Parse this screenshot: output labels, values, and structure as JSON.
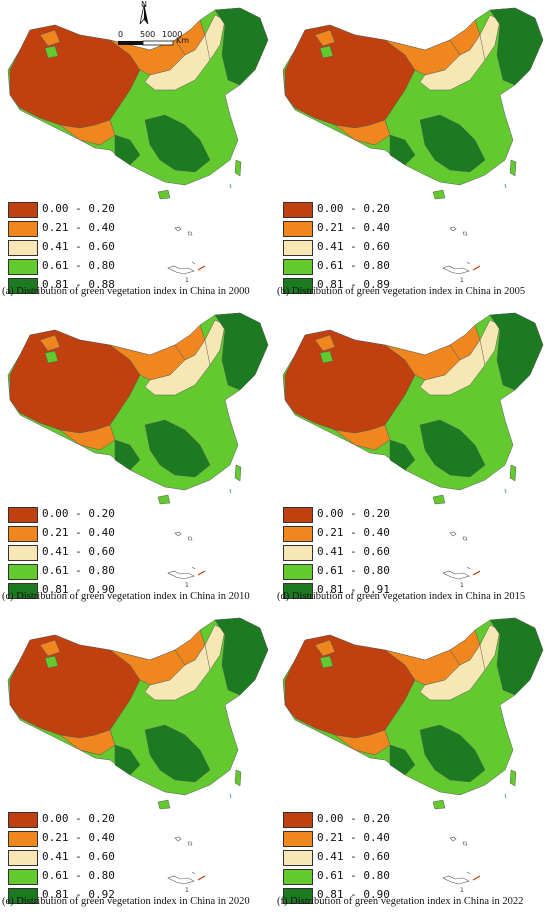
{
  "colors": {
    "c1": "#c0400f",
    "c2": "#f0861e",
    "c3": "#f6e7b4",
    "c4": "#62c92e",
    "c5": "#1c7a20",
    "border": "#333333",
    "sea_islands": "#3fb0c8"
  },
  "map_decor": {
    "north_label": "N",
    "scale_ticks": [
      "0",
      "500",
      "1000"
    ],
    "scale_unit": "Km"
  },
  "panels": [
    {
      "caption": "(a) Distribution of green vegetation index in China in 2000",
      "legend": [
        "0.00 - 0.20",
        "0.21 - 0.40",
        "0.41 - 0.60",
        "0.61 - 0.80",
        "0.81 - 0.88"
      ]
    },
    {
      "caption": "(b) Distribution of green vegetation index in China in 2005",
      "legend": [
        "0.00 - 0.20",
        "0.21 - 0.40",
        "0.41 - 0.60",
        "0.61 - 0.80",
        "0.81 - 0.89"
      ]
    },
    {
      "caption": "(c) Distribution of green vegetation index in China in 2010",
      "legend": [
        "0.00 - 0.20",
        "0.21 - 0.40",
        "0.41 - 0.60",
        "0.61 - 0.80",
        "0.81 - 0.90"
      ]
    },
    {
      "caption": "(d) Distribution of green vegetation index in China in 2015",
      "legend": [
        "0.00 - 0.20",
        "0.21 - 0.40",
        "0.41 - 0.60",
        "0.61 - 0.80",
        "0.81 - 0.91"
      ]
    },
    {
      "caption": "(e) Distribution of green vegetation index in China in 2020",
      "legend": [
        "0.00 - 0.20",
        "0.21 - 0.40",
        "0.41 - 0.60",
        "0.61 - 0.80",
        "0.81 - 0.92"
      ]
    },
    {
      "caption": "(f) Distribution of green vegetation index in China in 2022",
      "legend": [
        "0.00 - 0.20",
        "0.21 - 0.40",
        "0.41 - 0.60",
        "0.61 - 0.80",
        "0.81 - 0.90"
      ]
    }
  ]
}
